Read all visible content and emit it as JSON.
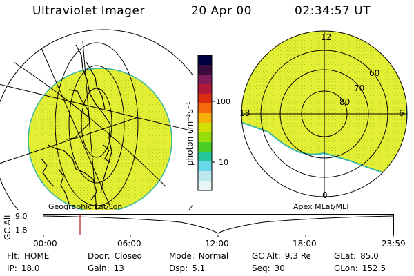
{
  "header": {
    "instrument": "Ultraviolet Imager",
    "date": "20 Apr 00",
    "time": "02:34:57 UT"
  },
  "colors": {
    "aurora_fill": "#e3ef34",
    "speckle": "#b5cb21",
    "edge": "#35b6a6",
    "grid": "#000000",
    "marker": "#c01818"
  },
  "left_panel": {
    "label": "Geographic Lat/Lon"
  },
  "right_panel": {
    "label": "Apex MLat/MLT",
    "mlt_labels": [
      "12",
      "18",
      "6",
      "0"
    ],
    "mlat_labels": [
      "60",
      "70",
      "80"
    ]
  },
  "colorbar": {
    "unit_label": "photon cm⁻²s⁻¹",
    "ticks": [
      "100",
      "10"
    ],
    "scale": "log",
    "colors": [
      "#000040",
      "#3a0d3e",
      "#7e1c5a",
      "#b21839",
      "#dd2d12",
      "#f46a0c",
      "#f7b00a",
      "#d2df08",
      "#97de0c",
      "#4bcf27",
      "#25c79a",
      "#6ad9ea",
      "#bde8ef",
      "#e9f6f8"
    ]
  },
  "timeline": {
    "y_axis_label": "GC Alt",
    "y_ticks": [
      "9.0",
      "1.8"
    ],
    "x_ticks": [
      "00:00",
      "06:00",
      "12:00",
      "18:00",
      "23:59"
    ],
    "marker_time": "02:34:57"
  },
  "status": {
    "row1": [
      {
        "key": "Flt:",
        "value": "HOME"
      },
      {
        "key": "Door:",
        "value": "Closed"
      },
      {
        "key": "Mode:",
        "value": "Normal"
      },
      {
        "key": "GC Alt:",
        "value": "9.3 Re"
      },
      {
        "key": "GLat:",
        "value": "85.0"
      }
    ],
    "row2": [
      {
        "key": "IP:",
        "value": "18.0"
      },
      {
        "key": "Gain:",
        "value": "13"
      },
      {
        "key": "Dsp:",
        "value": "5.1"
      },
      {
        "key": "Seq:",
        "value": "30"
      },
      {
        "key": "GLon:",
        "value": "152.5"
      }
    ]
  }
}
